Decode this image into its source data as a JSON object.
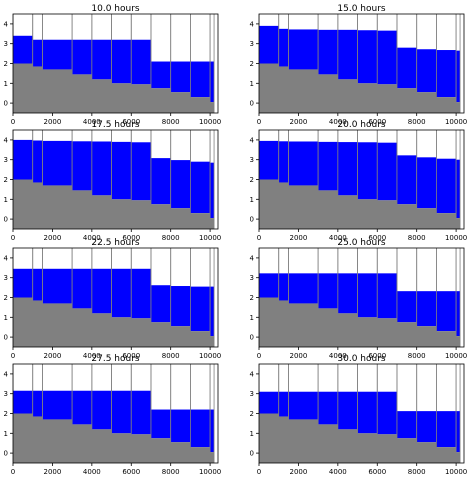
{
  "chart_data": [
    {
      "type": "area",
      "title": "10.0 hours",
      "water_level": [
        3.4,
        3.2,
        3.2,
        3.2,
        3.2,
        3.2,
        3.2,
        2.1,
        2.1,
        2.1,
        2.1
      ]
    },
    {
      "type": "area",
      "title": "15.0 hours",
      "water_level": [
        3.9,
        3.75,
        3.72,
        3.7,
        3.7,
        3.68,
        3.66,
        2.8,
        2.72,
        2.68,
        2.65
      ]
    },
    {
      "type": "area",
      "title": "17.5 hours",
      "water_level": [
        4.0,
        3.97,
        3.95,
        3.93,
        3.92,
        3.9,
        3.88,
        3.08,
        2.98,
        2.9,
        2.85
      ]
    },
    {
      "type": "area",
      "title": "20.0 hours",
      "water_level": [
        3.95,
        3.93,
        3.92,
        3.9,
        3.89,
        3.88,
        3.86,
        3.22,
        3.12,
        3.05,
        3.0
      ]
    },
    {
      "type": "area",
      "title": "22.5 hours",
      "water_level": [
        3.45,
        3.45,
        3.45,
        3.45,
        3.45,
        3.45,
        3.45,
        2.62,
        2.58,
        2.55,
        2.55
      ]
    },
    {
      "type": "area",
      "title": "25.0 hours",
      "water_level": [
        3.22,
        3.22,
        3.22,
        3.22,
        3.22,
        3.22,
        3.22,
        2.32,
        2.32,
        2.32,
        2.32
      ]
    },
    {
      "type": "area",
      "title": "27.5 hours",
      "water_level": [
        3.15,
        3.15,
        3.15,
        3.15,
        3.15,
        3.15,
        3.15,
        2.2,
        2.2,
        2.2,
        2.2
      ]
    },
    {
      "type": "area",
      "title": "30.0 hours",
      "water_level": [
        3.1,
        3.1,
        3.1,
        3.1,
        3.1,
        3.1,
        3.1,
        2.12,
        2.12,
        2.12,
        2.12
      ]
    }
  ],
  "shared": {
    "cell_edges_x": [
      0,
      1000,
      1500,
      3000,
      4000,
      5000,
      6000,
      7000,
      8000,
      9000,
      10000,
      10200
    ],
    "bed_elevation": [
      2.0,
      1.85,
      1.7,
      1.45,
      1.2,
      1.0,
      0.95,
      0.75,
      0.55,
      0.3,
      0.05
    ],
    "x_ticks": [
      0,
      2000,
      4000,
      6000,
      8000,
      10000
    ],
    "y_ticks": [
      0,
      1,
      2,
      3,
      4
    ],
    "xlim": [
      0,
      10400
    ],
    "ylim": [
      -0.5,
      4.5
    ],
    "colors": {
      "water": "#0000ff",
      "bed": "#808080",
      "cell_outline": "#808080",
      "axes": "#000000"
    }
  }
}
